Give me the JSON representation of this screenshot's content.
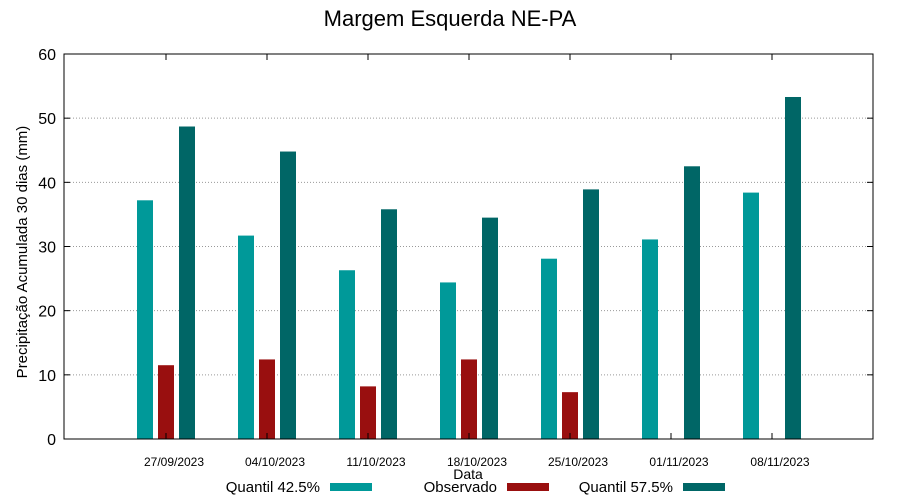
{
  "chart_data": {
    "type": "bar",
    "title": "Margem Esquerda NE-PA",
    "xlabel": "Data",
    "ylabel": "Precipitação Acumulada 30 dias (mm)",
    "ylim": [
      0,
      60
    ],
    "yticks": [
      0,
      10,
      20,
      30,
      40,
      50,
      60
    ],
    "grid": true,
    "legend_position": "bottom",
    "categories": [
      "27/09/2023",
      "04/10/2023",
      "11/10/2023",
      "18/10/2023",
      "25/10/2023",
      "01/11/2023",
      "08/11/2023"
    ],
    "series": [
      {
        "name": "Quantil 42.5%",
        "color": "#009999",
        "values": [
          37.2,
          31.7,
          26.3,
          24.4,
          28.1,
          31.1,
          38.4
        ]
      },
      {
        "name": "Observado",
        "color": "#990f0f",
        "values": [
          11.5,
          12.4,
          8.2,
          12.4,
          7.3,
          null,
          null
        ]
      },
      {
        "name": "Quantil 57.5%",
        "color": "#006666",
        "values": [
          48.7,
          44.8,
          35.8,
          34.5,
          38.9,
          42.5,
          53.3
        ]
      }
    ]
  }
}
